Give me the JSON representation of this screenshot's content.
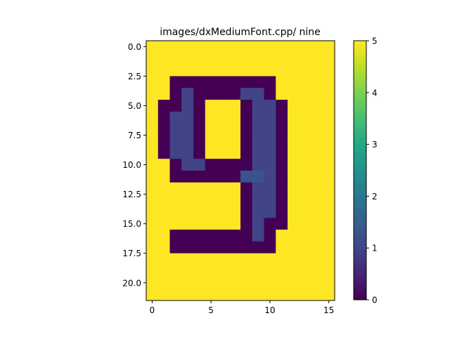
{
  "chart_data": {
    "type": "heatmap",
    "title": "images/dxMediumFont.cpp/ nine",
    "xlabel": "",
    "ylabel": "",
    "xlim": [
      -0.5,
      15.5
    ],
    "ylim": [
      21.5,
      -0.5
    ],
    "x_ticks": [
      0,
      5,
      10,
      15
    ],
    "x_tick_labels": [
      "0",
      "5",
      "10",
      "15"
    ],
    "y_ticks": [
      0,
      2.5,
      5,
      7.5,
      10,
      12.5,
      15,
      17.5,
      20
    ],
    "y_tick_labels": [
      "0.0",
      "2.5",
      "5.0",
      "7.5",
      "10.0",
      "12.5",
      "15.0",
      "17.5",
      "20.0"
    ],
    "colorbar": {
      "min": 0,
      "max": 5,
      "ticks": [
        0,
        1,
        2,
        3,
        4,
        5
      ],
      "tick_labels": [
        "0",
        "1",
        "2",
        "3",
        "4",
        "5"
      ],
      "colormap": "viridis"
    },
    "grid": false,
    "matrix": [
      [
        5,
        5,
        5,
        5,
        5,
        5,
        5,
        5,
        5,
        5,
        5,
        5,
        5,
        5,
        5,
        5
      ],
      [
        5,
        5,
        5,
        5,
        5,
        5,
        5,
        5,
        5,
        5,
        5,
        5,
        5,
        5,
        5,
        5
      ],
      [
        5,
        5,
        5,
        5,
        5,
        5,
        5,
        5,
        5,
        5,
        5,
        5,
        5,
        5,
        5,
        5
      ],
      [
        5,
        5,
        0,
        0,
        0,
        0,
        0,
        0,
        0,
        0,
        0,
        5,
        5,
        5,
        5,
        5
      ],
      [
        5,
        5,
        0,
        1,
        0,
        0,
        0,
        0,
        1,
        1,
        0,
        5,
        5,
        5,
        5,
        5
      ],
      [
        5,
        0,
        0,
        1,
        0,
        5,
        5,
        5,
        0,
        1,
        1,
        0,
        5,
        5,
        5,
        5
      ],
      [
        5,
        0,
        1,
        1,
        0,
        5,
        5,
        5,
        0,
        1,
        1,
        0,
        5,
        5,
        5,
        5
      ],
      [
        5,
        0,
        1,
        1,
        0,
        5,
        5,
        5,
        0,
        1,
        1,
        0,
        5,
        5,
        5,
        5
      ],
      [
        5,
        0,
        1,
        1,
        0,
        5,
        5,
        5,
        0,
        1,
        1,
        0,
        5,
        5,
        5,
        5
      ],
      [
        5,
        0,
        1,
        1,
        0,
        5,
        5,
        5,
        0,
        1,
        1,
        0,
        5,
        5,
        5,
        5
      ],
      [
        5,
        5,
        0,
        1,
        1,
        0,
        0,
        0,
        0,
        1,
        1,
        0,
        5,
        5,
        5,
        5
      ],
      [
        5,
        5,
        0,
        0,
        0,
        0,
        0,
        0,
        1.3,
        1.3,
        1,
        0,
        5,
        5,
        5,
        5
      ],
      [
        5,
        5,
        5,
        5,
        5,
        5,
        5,
        5,
        0,
        1,
        1,
        0,
        5,
        5,
        5,
        5
      ],
      [
        5,
        5,
        5,
        5,
        5,
        5,
        5,
        5,
        0,
        1,
        1,
        0,
        5,
        5,
        5,
        5
      ],
      [
        5,
        5,
        5,
        5,
        5,
        5,
        5,
        5,
        0,
        1,
        1,
        0,
        5,
        5,
        5,
        5
      ],
      [
        5,
        5,
        5,
        5,
        5,
        5,
        5,
        5,
        0,
        1,
        0,
        0,
        5,
        5,
        5,
        5
      ],
      [
        5,
        5,
        0,
        0,
        0,
        0,
        0,
        0,
        0,
        1,
        0,
        5,
        5,
        5,
        5,
        5
      ],
      [
        5,
        5,
        0,
        0,
        0,
        0,
        0,
        0,
        0,
        0,
        0,
        5,
        5,
        5,
        5,
        5
      ],
      [
        5,
        5,
        5,
        5,
        5,
        5,
        5,
        5,
        5,
        5,
        5,
        5,
        5,
        5,
        5,
        5
      ],
      [
        5,
        5,
        5,
        5,
        5,
        5,
        5,
        5,
        5,
        5,
        5,
        5,
        5,
        5,
        5,
        5
      ],
      [
        5,
        5,
        5,
        5,
        5,
        5,
        5,
        5,
        5,
        5,
        5,
        5,
        5,
        5,
        5,
        5
      ],
      [
        5,
        5,
        5,
        5,
        5,
        5,
        5,
        5,
        5,
        5,
        5,
        5,
        5,
        5,
        5,
        5
      ]
    ]
  }
}
